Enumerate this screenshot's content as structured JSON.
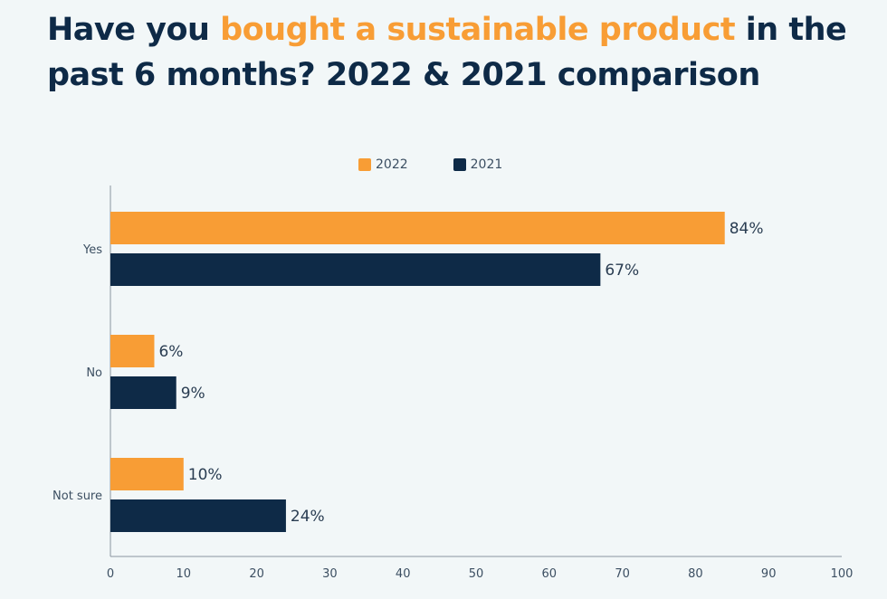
{
  "title": {
    "prefix": "Have you ",
    "highlight": "bought a sustainable product",
    "suffix": " in the past 6 months? 2022 & 2021 comparison"
  },
  "colors": {
    "series_2022": "#f89d35",
    "series_2021": "#0e2a47",
    "title": "#0e2a47",
    "highlight": "#f89d35"
  },
  "chart_data": {
    "type": "bar",
    "orientation": "horizontal",
    "title": "Have you bought a sustainable product in the past 6 months? 2022 & 2021 comparison",
    "categories": [
      "Yes",
      "No",
      "Not sure"
    ],
    "series": [
      {
        "name": "2022",
        "values": [
          84,
          6,
          10
        ],
        "labels": [
          "84%",
          "6%",
          "10%"
        ]
      },
      {
        "name": "2021",
        "values": [
          67,
          9,
          24
        ],
        "labels": [
          "67%",
          "9%",
          "24%"
        ]
      }
    ],
    "xlabel": "",
    "ylabel": "",
    "xlim": [
      0,
      100
    ],
    "xticks": [
      0,
      10,
      20,
      30,
      40,
      50,
      60,
      70,
      80,
      90,
      100
    ],
    "grid": false,
    "legend": "top-center"
  }
}
